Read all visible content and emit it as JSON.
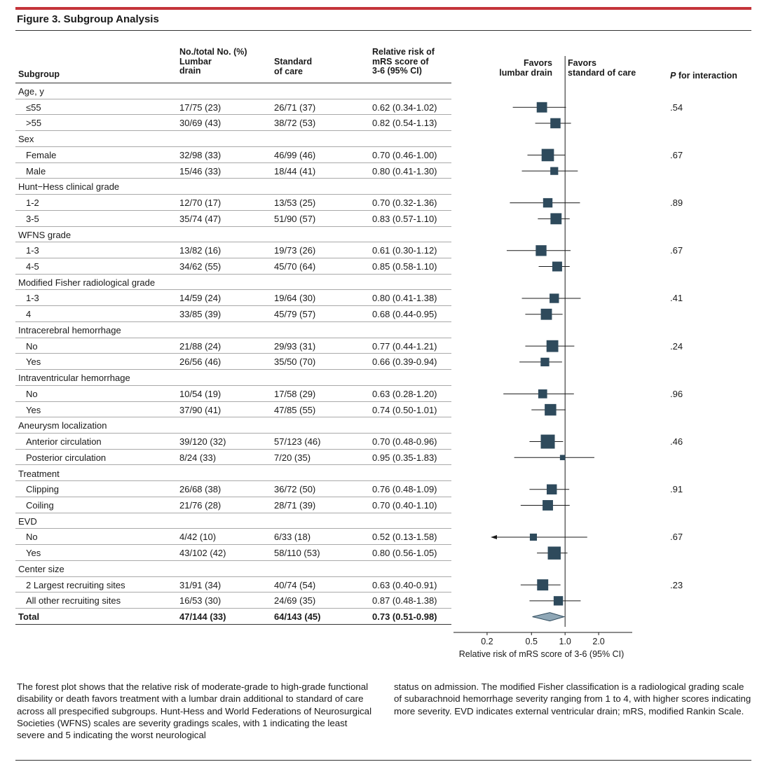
{
  "figure": {
    "title": "Figure 3. Subgroup Analysis"
  },
  "headers": {
    "subgroup": "Subgroup",
    "lumbar": [
      "No./total No. (%)",
      "Lumbar",
      "drain"
    ],
    "standard": [
      "Standard",
      "of care"
    ],
    "rr": [
      "Relative risk of",
      "mRS score of",
      "3-6 (95% CI)"
    ],
    "favors_left": [
      "Favors",
      "lumbar drain"
    ],
    "favors_right": [
      "Favors",
      "standard of care"
    ],
    "p_interaction_italic": "P",
    "p_interaction_rest": " for interaction"
  },
  "rows": [
    {
      "label": "Age, y",
      "category": true
    },
    {
      "label": "≤55",
      "lumbar": "17/75 (23)",
      "standard": "26/71 (37)",
      "rr_text": "0.62 (0.34-1.02)",
      "p": ".54"
    },
    {
      "label": ">55",
      "lumbar": "30/69 (43)",
      "standard": "38/72 (53)",
      "rr_text": "0.82 (0.54-1.13)",
      "p": ""
    },
    {
      "label": "Sex",
      "category": true
    },
    {
      "label": "Female",
      "lumbar": "32/98 (33)",
      "standard": "46/99 (46)",
      "rr_text": "0.70 (0.46-1.00)",
      "p": ".67"
    },
    {
      "label": "Male",
      "lumbar": "15/46 (33)",
      "standard": "18/44 (41)",
      "rr_text": "0.80 (0.41-1.30)",
      "p": ""
    },
    {
      "label": "Hunt−Hess clinical grade",
      "category": true
    },
    {
      "label": "1-2",
      "lumbar": "12/70 (17)",
      "standard": "13/53 (25)",
      "rr_text": "0.70 (0.32-1.36)",
      "p": ".89"
    },
    {
      "label": "3-5",
      "lumbar": "35/74 (47)",
      "standard": "51/90 (57)",
      "rr_text": "0.83 (0.57-1.10)",
      "p": ""
    },
    {
      "label": "WFNS grade",
      "category": true
    },
    {
      "label": "1-3",
      "lumbar": "13/82 (16)",
      "standard": "19/73 (26)",
      "rr_text": "0.61 (0.30-1.12)",
      "p": ".67"
    },
    {
      "label": "4-5",
      "lumbar": "34/62 (55)",
      "standard": "45/70 (64)",
      "rr_text": "0.85 (0.58-1.10)",
      "p": ""
    },
    {
      "label": "Modified Fisher radiological grade",
      "category": true
    },
    {
      "label": "1-3",
      "lumbar": "14/59 (24)",
      "standard": "19/64 (30)",
      "rr_text": "0.80 (0.41-1.38)",
      "p": ".41"
    },
    {
      "label": "4",
      "lumbar": "33/85 (39)",
      "standard": "45/79 (57)",
      "rr_text": "0.68 (0.44-0.95)",
      "p": ""
    },
    {
      "label": "Intracerebral hemorrhage",
      "category": true
    },
    {
      "label": "No",
      "lumbar": "21/88 (24)",
      "standard": "29/93 (31)",
      "rr_text": "0.77 (0.44-1.21)",
      "p": ".24"
    },
    {
      "label": "Yes",
      "lumbar": "26/56 (46)",
      "standard": "35/50 (70)",
      "rr_text": "0.66 (0.39-0.94)",
      "p": ""
    },
    {
      "label": "Intraventricular hemorrhage",
      "category": true
    },
    {
      "label": "No",
      "lumbar": "10/54 (19)",
      "standard": "17/58 (29)",
      "rr_text": "0.63 (0.28-1.20)",
      "p": ".96"
    },
    {
      "label": "Yes",
      "lumbar": "37/90 (41)",
      "standard": "47/85 (55)",
      "rr_text": "0.74 (0.50-1.01)",
      "p": ""
    },
    {
      "label": "Aneurysm localization",
      "category": true
    },
    {
      "label": "Anterior circulation",
      "lumbar": "39/120 (32)",
      "standard": "57/123 (46)",
      "rr_text": "0.70 (0.48-0.96)",
      "p": ".46"
    },
    {
      "label": "Posterior circulation",
      "lumbar": "8/24 (33)",
      "standard": "7/20 (35)",
      "rr_text": "0.95 (0.35-1.83)",
      "p": ""
    },
    {
      "label": "Treatment",
      "category": true
    },
    {
      "label": "Clipping",
      "lumbar": "26/68 (38)",
      "standard": "36/72 (50)",
      "rr_text": "0.76 (0.48-1.09)",
      "p": ".91"
    },
    {
      "label": "Coiling",
      "lumbar": "21/76 (28)",
      "standard": "28/71 (39)",
      "rr_text": "0.70 (0.40-1.10)",
      "p": ""
    },
    {
      "label": "EVD",
      "category": true
    },
    {
      "label": "No",
      "lumbar": "4/42 (10)",
      "standard": "6/33 (18)",
      "rr_text": "0.52 (0.13-1.58)",
      "p": ".67"
    },
    {
      "label": "Yes",
      "lumbar": "43/102 (42)",
      "standard": "58/110 (53)",
      "rr_text": "0.80 (0.56-1.05)",
      "p": ""
    },
    {
      "label": "Center size",
      "category": true
    },
    {
      "label": "2 Largest recruiting sites",
      "lumbar": "31/91 (34)",
      "standard": "40/74 (54)",
      "rr_text": "0.63 (0.40-0.91)",
      "p": ".23"
    },
    {
      "label": "All other recruiting sites",
      "lumbar": "16/53 (30)",
      "standard": "24/69 (35)",
      "rr_text": "0.87 (0.48-1.38)",
      "p": ""
    },
    {
      "label": "Total",
      "lumbar": "47/144 (33)",
      "standard": "64/143 (45)",
      "rr_text": "0.73 (0.51-0.98)",
      "p": "",
      "total": true
    }
  ],
  "chart_data": {
    "type": "forest",
    "xlabel": "Relative risk of mRS score of 3-6 (95% CI)",
    "x_scale": "log",
    "xticks": [
      0.2,
      0.5,
      1.0,
      2.0
    ],
    "xtick_labels": [
      "0.2",
      "0.5",
      "1.0",
      "2.0"
    ],
    "reference_line": 1.0,
    "points": [
      {
        "label": "≤55",
        "rr": 0.62,
        "lo": 0.34,
        "hi": 1.02,
        "n": 146
      },
      {
        "label": ">55",
        "rr": 0.82,
        "lo": 0.54,
        "hi": 1.13,
        "n": 141
      },
      {
        "label": "Female",
        "rr": 0.7,
        "lo": 0.46,
        "hi": 1.0,
        "n": 197
      },
      {
        "label": "Male",
        "rr": 0.8,
        "lo": 0.41,
        "hi": 1.3,
        "n": 90
      },
      {
        "label": "1-2",
        "rr": 0.7,
        "lo": 0.32,
        "hi": 1.36,
        "n": 123
      },
      {
        "label": "3-5",
        "rr": 0.83,
        "lo": 0.57,
        "hi": 1.1,
        "n": 164
      },
      {
        "label": "1-3",
        "rr": 0.61,
        "lo": 0.3,
        "hi": 1.12,
        "n": 155
      },
      {
        "label": "4-5",
        "rr": 0.85,
        "lo": 0.58,
        "hi": 1.1,
        "n": 132
      },
      {
        "label": "1-3",
        "rr": 0.8,
        "lo": 0.41,
        "hi": 1.38,
        "n": 123
      },
      {
        "label": "4",
        "rr": 0.68,
        "lo": 0.44,
        "hi": 0.95,
        "n": 164
      },
      {
        "label": "No",
        "rr": 0.77,
        "lo": 0.44,
        "hi": 1.21,
        "n": 181
      },
      {
        "label": "Yes",
        "rr": 0.66,
        "lo": 0.39,
        "hi": 0.94,
        "n": 106
      },
      {
        "label": "No",
        "rr": 0.63,
        "lo": 0.28,
        "hi": 1.2,
        "n": 112
      },
      {
        "label": "Yes",
        "rr": 0.74,
        "lo": 0.5,
        "hi": 1.01,
        "n": 175
      },
      {
        "label": "Anterior circulation",
        "rr": 0.7,
        "lo": 0.48,
        "hi": 0.96,
        "n": 243
      },
      {
        "label": "Posterior circulation",
        "rr": 0.95,
        "lo": 0.35,
        "hi": 1.83,
        "n": 44
      },
      {
        "label": "Clipping",
        "rr": 0.76,
        "lo": 0.48,
        "hi": 1.09,
        "n": 140
      },
      {
        "label": "Coiling",
        "rr": 0.7,
        "lo": 0.4,
        "hi": 1.1,
        "n": 147
      },
      {
        "label": "No",
        "rr": 0.52,
        "lo": 0.13,
        "hi": 1.58,
        "n": 75
      },
      {
        "label": "Yes",
        "rr": 0.8,
        "lo": 0.56,
        "hi": 1.05,
        "n": 212
      },
      {
        "label": "2 Largest recruiting sites",
        "rr": 0.63,
        "lo": 0.4,
        "hi": 0.91,
        "n": 165
      },
      {
        "label": "All other recruiting sites",
        "rr": 0.87,
        "lo": 0.48,
        "hi": 1.38,
        "n": 122
      },
      {
        "label": "Total",
        "rr": 0.73,
        "lo": 0.51,
        "hi": 0.98,
        "total": true
      }
    ],
    "colors": {
      "marker": "#2e4a5c",
      "diamond": "#8fa7b6",
      "line": "#1a1a1a"
    }
  },
  "caption": {
    "left": "The forest plot shows that the relative risk of moderate-grade to high-grade functional disability or death favors treatment with a lumbar drain additional to standard of care across all prespecified subgroups. Hunt-Hess and World Federations of Neurosurgical Societies (WFNS) scales are severity gradings scales, with 1 indicating the least severe and 5 indicating the worst neurological",
    "right": "status on admission. The modified Fisher classification is a radiological grading scale of subarachnoid hemorrhage severity ranging from 1 to 4, with higher scores indicating more severity. EVD indicates external ventricular drain; mRS, modified Rankin Scale."
  }
}
